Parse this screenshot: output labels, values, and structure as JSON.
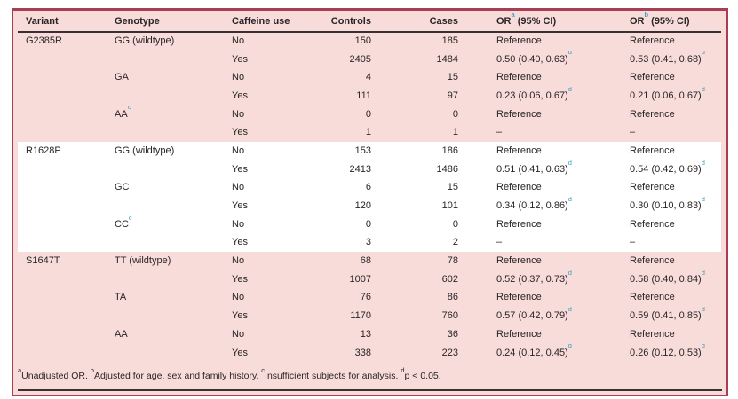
{
  "colors": {
    "pink_background": "#f7dcda",
    "border_maroon": "#a83d54",
    "rule_dark": "#3a2f33",
    "superscript_teal": "#3fa0c0",
    "text": "#2a2427"
  },
  "table": {
    "columns": [
      {
        "key": "variant",
        "label": "Variant"
      },
      {
        "key": "genotype",
        "label": "Genotype"
      },
      {
        "key": "caffeine",
        "label": "Caffeine use"
      },
      {
        "key": "controls",
        "label": "Controls"
      },
      {
        "key": "cases",
        "label": "Cases"
      },
      {
        "key": "or_a",
        "label_pre": "OR",
        "label_sup": "a",
        "label_post": " (95% CI)"
      },
      {
        "key": "or_b",
        "label_pre": "OR",
        "label_sup": "b",
        "label_post": " (95% CI)"
      }
    ],
    "sections": [
      {
        "variant": "G2385R",
        "band": "pink",
        "rows": [
          {
            "genotype": "GG (wildtype)",
            "genotype_sup": "",
            "caffeine": "No",
            "controls": "150",
            "cases": "185",
            "or_a": {
              "text": "Reference",
              "sup": ""
            },
            "or_b": {
              "text": "Reference",
              "sup": ""
            }
          },
          {
            "genotype": "",
            "genotype_sup": "",
            "caffeine": "Yes",
            "controls": "2405",
            "cases": "1484",
            "or_a": {
              "text": "0.50 (0.40, 0.63)",
              "sup": "d"
            },
            "or_b": {
              "text": "0.53 (0.41, 0.68)",
              "sup": "d"
            }
          },
          {
            "genotype": "GA",
            "genotype_sup": "",
            "caffeine": "No",
            "controls": "4",
            "cases": "15",
            "or_a": {
              "text": "Reference",
              "sup": ""
            },
            "or_b": {
              "text": "Reference",
              "sup": ""
            }
          },
          {
            "genotype": "",
            "genotype_sup": "",
            "caffeine": "Yes",
            "controls": "111",
            "cases": "97",
            "or_a": {
              "text": "0.23 (0.06, 0.67)",
              "sup": "d"
            },
            "or_b": {
              "text": "0.21 (0.06, 0.67)",
              "sup": "d"
            }
          },
          {
            "genotype": "AA",
            "genotype_sup": "c",
            "caffeine": "No",
            "controls": "0",
            "cases": "0",
            "or_a": {
              "text": "Reference",
              "sup": ""
            },
            "or_b": {
              "text": "Reference",
              "sup": ""
            }
          },
          {
            "genotype": "",
            "genotype_sup": "",
            "caffeine": "Yes",
            "controls": "1",
            "cases": "1",
            "or_a": {
              "text": "–",
              "sup": ""
            },
            "or_b": {
              "text": "–",
              "sup": ""
            }
          }
        ]
      },
      {
        "variant": "R1628P",
        "band": "white",
        "rows": [
          {
            "genotype": "GG (wildtype)",
            "genotype_sup": "",
            "caffeine": "No",
            "controls": "153",
            "cases": "186",
            "or_a": {
              "text": "Reference",
              "sup": ""
            },
            "or_b": {
              "text": "Reference",
              "sup": ""
            }
          },
          {
            "genotype": "",
            "genotype_sup": "",
            "caffeine": "Yes",
            "controls": "2413",
            "cases": "1486",
            "or_a": {
              "text": "0.51 (0.41, 0.63)",
              "sup": "d"
            },
            "or_b": {
              "text": "0.54 (0.42, 0.69)",
              "sup": "d"
            }
          },
          {
            "genotype": "GC",
            "genotype_sup": "",
            "caffeine": "No",
            "controls": "6",
            "cases": "15",
            "or_a": {
              "text": "Reference",
              "sup": ""
            },
            "or_b": {
              "text": "Reference",
              "sup": ""
            }
          },
          {
            "genotype": "",
            "genotype_sup": "",
            "caffeine": "Yes",
            "controls": "120",
            "cases": "101",
            "or_a": {
              "text": "0.34 (0.12, 0.86)",
              "sup": "d"
            },
            "or_b": {
              "text": "0.30 (0.10, 0.83)",
              "sup": "d"
            }
          },
          {
            "genotype": "CC",
            "genotype_sup": "c",
            "caffeine": "No",
            "controls": "0",
            "cases": "0",
            "or_a": {
              "text": "Reference",
              "sup": ""
            },
            "or_b": {
              "text": "Reference",
              "sup": ""
            }
          },
          {
            "genotype": "",
            "genotype_sup": "",
            "caffeine": "Yes",
            "controls": "3",
            "cases": "2",
            "or_a": {
              "text": "–",
              "sup": ""
            },
            "or_b": {
              "text": "–",
              "sup": ""
            }
          }
        ]
      },
      {
        "variant": "S1647T",
        "band": "pink",
        "rows": [
          {
            "genotype": "TT (wildtype)",
            "genotype_sup": "",
            "caffeine": "No",
            "controls": "68",
            "cases": "78",
            "or_a": {
              "text": "Reference",
              "sup": ""
            },
            "or_b": {
              "text": "Reference",
              "sup": ""
            }
          },
          {
            "genotype": "",
            "genotype_sup": "",
            "caffeine": "Yes",
            "controls": "1007",
            "cases": "602",
            "or_a": {
              "text": "0.52 (0.37, 0.73)",
              "sup": "d"
            },
            "or_b": {
              "text": "0.58 (0.40, 0.84)",
              "sup": "d"
            }
          },
          {
            "genotype": "TA",
            "genotype_sup": "",
            "caffeine": "No",
            "controls": "76",
            "cases": "86",
            "or_a": {
              "text": "Reference",
              "sup": ""
            },
            "or_b": {
              "text": "Reference",
              "sup": ""
            }
          },
          {
            "genotype": "",
            "genotype_sup": "",
            "caffeine": "Yes",
            "controls": "1170",
            "cases": "760",
            "or_a": {
              "text": "0.57 (0.42, 0.79)",
              "sup": "d"
            },
            "or_b": {
              "text": "0.59 (0.41, 0.85)",
              "sup": "d"
            }
          },
          {
            "genotype": "AA",
            "genotype_sup": "",
            "caffeine": "No",
            "controls": "13",
            "cases": "36",
            "or_a": {
              "text": "Reference",
              "sup": ""
            },
            "or_b": {
              "text": "Reference",
              "sup": ""
            }
          },
          {
            "genotype": "",
            "genotype_sup": "",
            "caffeine": "Yes",
            "controls": "338",
            "cases": "223",
            "or_a": {
              "text": "0.24 (0.12, 0.45)",
              "sup": "d"
            },
            "or_b": {
              "text": "0.26 (0.12, 0.53)",
              "sup": "d"
            }
          }
        ]
      }
    ]
  },
  "footnote": {
    "parts": [
      {
        "sup": "a",
        "text": "Unadjusted OR. "
      },
      {
        "sup": "b",
        "text": "Adjusted for age, sex and family history. "
      },
      {
        "sup": "c",
        "text": "Insufficient subjects for analysis. "
      },
      {
        "sup": "d",
        "text": "p < 0.05."
      }
    ]
  }
}
